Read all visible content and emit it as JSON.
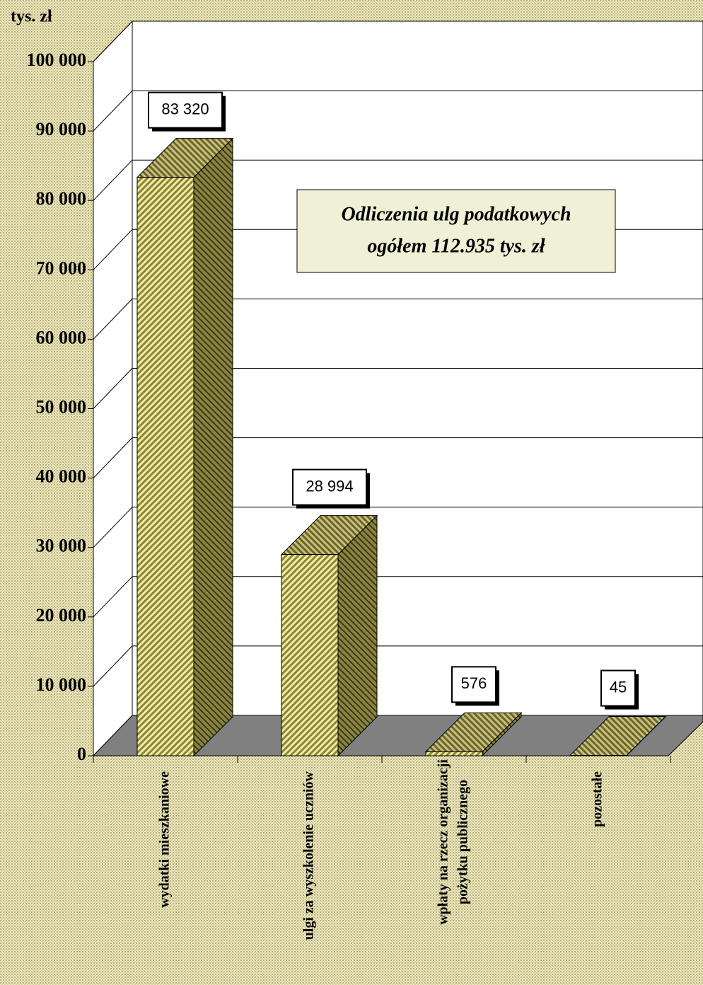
{
  "chart_data": {
    "type": "bar3d",
    "y_axis_label": "tys. zł",
    "annotation": [
      "Odliczenia ulg podatkowych",
      "ogółem 112.935 tys. zł"
    ],
    "categories": [
      [
        "wydatki mieszkaniowe"
      ],
      [
        "ulgi za wyszkolenie uczniów"
      ],
      [
        "wpłaty na rzecz organizacji",
        "pożytku publicznego"
      ],
      [
        "pozostałe"
      ]
    ],
    "values": [
      83320,
      28994,
      576,
      45
    ],
    "value_labels": [
      "83 320",
      "28 994",
      "576",
      "45"
    ],
    "ylim": [
      0,
      100000
    ],
    "yticks": [
      0,
      {
        "value": 10000,
        "label": "10 000"
      },
      {
        "value": 20000,
        "label": "20 000"
      },
      {
        "value": 30000,
        "label": "30 000"
      },
      {
        "value": 40000,
        "label": "40 000"
      },
      {
        "value": 50000,
        "label": "50 000"
      },
      {
        "value": 60000,
        "label": "60 000"
      },
      {
        "value": 70000,
        "label": "70 000"
      },
      {
        "value": 80000,
        "label": "80 000"
      },
      {
        "value": 90000,
        "label": "90 000"
      },
      {
        "value": 100000,
        "label": "100 000"
      }
    ],
    "grid": true
  }
}
